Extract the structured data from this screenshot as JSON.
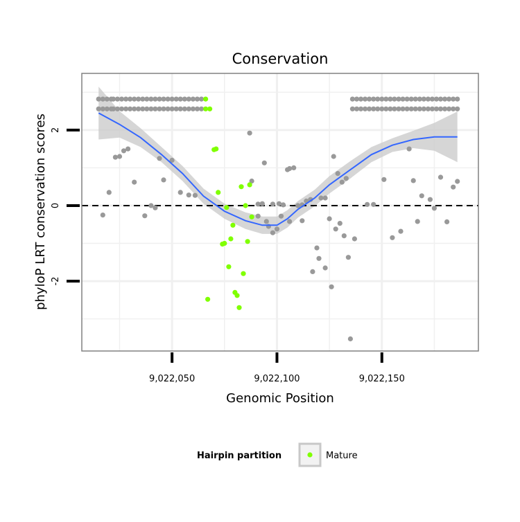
{
  "chart_data": {
    "type": "scatter",
    "title": "Conservation",
    "xlabel": "Genomic Position",
    "ylabel": "phyloP LRT conservation scores",
    "xlim": [
      9022007,
      9022196
    ],
    "ylim": [
      -3.85,
      3.5
    ],
    "xticks": [
      {
        "value": 9022050,
        "label": "9,022,050"
      },
      {
        "value": 9022100,
        "label": "9,022,100"
      },
      {
        "value": 9022150,
        "label": "9,022,150"
      }
    ],
    "yticks": [
      {
        "value": -2,
        "label": "-2"
      },
      {
        "value": 0,
        "label": "0"
      },
      {
        "value": 2,
        "label": "2"
      }
    ],
    "grid": true,
    "reference_line": {
      "y": 0,
      "style": "dashed"
    },
    "legend": {
      "title": "Hairpin partition",
      "position": "bottom",
      "entries": [
        "Mature"
      ]
    },
    "colors": {
      "background_points": "#999999",
      "mature_points": "#80ff00",
      "smooth_line": "#3366ff",
      "confidence_band": "#cccccc",
      "grid": "#f0f0f0",
      "panel_border": "#808080"
    },
    "series": [
      {
        "role": "background",
        "x": [
          9022015,
          9022017,
          9022019,
          9022021,
          9022022,
          9022024,
          9022026,
          9022028,
          9022030,
          9022032,
          9022034,
          9022036,
          9022038,
          9022040,
          9022042,
          9022044,
          9022046,
          9022048,
          9022050,
          9022052,
          9022054,
          9022056,
          9022058,
          9022060,
          9022062,
          9022064,
          9022015,
          9022017,
          9022019,
          9022021,
          9022022,
          9022024,
          9022026,
          9022028,
          9022030,
          9022032,
          9022034,
          9022036,
          9022038,
          9022040,
          9022042,
          9022044,
          9022046,
          9022048,
          9022050,
          9022052,
          9022054,
          9022056,
          9022058,
          9022060,
          9022062,
          9022064,
          9022136,
          9022138,
          9022140,
          9022142,
          9022144,
          9022146,
          9022148,
          9022150,
          9022152,
          9022154,
          9022156,
          9022158,
          9022160,
          9022162,
          9022164,
          9022166,
          9022168,
          9022170,
          9022172,
          9022174,
          9022176,
          9022178,
          9022180,
          9022182,
          9022184,
          9022186,
          9022136,
          9022138,
          9022140,
          9022142,
          9022144,
          9022146,
          9022148,
          9022150,
          9022152,
          9022154,
          9022156,
          9022158,
          9022160,
          9022162,
          9022164,
          9022166,
          9022168,
          9022170,
          9022172,
          9022174,
          9022176,
          9022178,
          9022180,
          9022182,
          9022184,
          9022186,
          9022017,
          9022020,
          9022023,
          9022025,
          9022027,
          9022029,
          9022032,
          9022037,
          9022040,
          9022042,
          9022044,
          9022046,
          9022050,
          9022054,
          9022058,
          9022061,
          9022087,
          9022091,
          9022093,
          9022096,
          9022098,
          9022101,
          9022103,
          9022105,
          9022106,
          9022108,
          9022110,
          9022112,
          9022114,
          9022116,
          9022117,
          9022119,
          9022121,
          9022123,
          9022125,
          9022127,
          9022129,
          9022131,
          9022133,
          9022135,
          9022137,
          9022143,
          9022146,
          9022151,
          9022155,
          9022159,
          9022163,
          9022165,
          9022167,
          9022169,
          9022173,
          9022175,
          9022178,
          9022181,
          9022184,
          9022186,
          9022088,
          9022091,
          9022094,
          9022095,
          9022098,
          9022100,
          9022102,
          9022106,
          9022112,
          9022120,
          9022123,
          9022126,
          9022128,
          9022130,
          9022132,
          9022134
        ],
        "y": [
          2.56,
          2.56,
          2.56,
          2.56,
          2.56,
          2.56,
          2.56,
          2.56,
          2.56,
          2.56,
          2.56,
          2.56,
          2.56,
          2.56,
          2.56,
          2.56,
          2.56,
          2.56,
          2.56,
          2.56,
          2.56,
          2.56,
          2.56,
          2.56,
          2.56,
          2.56,
          2.82,
          2.82,
          2.82,
          2.82,
          2.82,
          2.82,
          2.82,
          2.82,
          2.82,
          2.82,
          2.82,
          2.82,
          2.82,
          2.82,
          2.82,
          2.82,
          2.82,
          2.82,
          2.82,
          2.82,
          2.82,
          2.82,
          2.82,
          2.82,
          2.82,
          2.82,
          2.56,
          2.56,
          2.56,
          2.56,
          2.56,
          2.56,
          2.56,
          2.56,
          2.56,
          2.56,
          2.56,
          2.56,
          2.56,
          2.56,
          2.56,
          2.56,
          2.56,
          2.56,
          2.56,
          2.56,
          2.56,
          2.56,
          2.56,
          2.56,
          2.56,
          2.56,
          2.82,
          2.82,
          2.82,
          2.82,
          2.82,
          2.82,
          2.82,
          2.82,
          2.82,
          2.82,
          2.82,
          2.82,
          2.82,
          2.82,
          2.82,
          2.82,
          2.82,
          2.82,
          2.82,
          2.82,
          2.82,
          2.82,
          2.82,
          2.82,
          2.82,
          2.82,
          -0.25,
          0.35,
          1.28,
          1.3,
          1.45,
          1.5,
          0.62,
          -0.27,
          0.0,
          -0.06,
          1.25,
          0.68,
          1.2,
          0.35,
          0.28,
          0.27,
          1.92,
          0.04,
          0.05,
          -0.55,
          -0.72,
          0.05,
          0.02,
          0.95,
          0.98,
          1.0,
          0.0,
          0.02,
          0.12,
          0.16,
          -1.75,
          -1.12,
          0.2,
          0.2,
          -0.35,
          1.3,
          0.85,
          0.62,
          0.72,
          -3.53,
          -0.88,
          0.03,
          0.03,
          0.69,
          -0.85,
          -0.68,
          1.5,
          0.66,
          -0.42,
          0.26,
          0.16,
          -0.07,
          0.75,
          -0.43,
          0.49,
          0.64,
          0.65,
          -0.28,
          1.13,
          -0.42,
          0.04,
          -0.62,
          -0.28,
          -0.42,
          -0.4,
          -1.4,
          -1.65,
          -2.15,
          -0.62,
          -0.47,
          -0.8,
          -1.37
        ]
      },
      {
        "name": "Mature",
        "role": "mature",
        "x": [
          9022066,
          9022068,
          9022070,
          9022071,
          9022072,
          9022074,
          9022075,
          9022076,
          9022077,
          9022078,
          9022079,
          9022080,
          9022081,
          9022082,
          9022083,
          9022084,
          9022085,
          9022086,
          9022087,
          9022088,
          9022066,
          9022067
        ],
        "y": [
          2.82,
          2.56,
          1.48,
          1.5,
          0.35,
          -1.02,
          -1.0,
          -0.05,
          -1.62,
          -0.88,
          -0.52,
          -2.3,
          -2.38,
          -2.7,
          0.5,
          -1.8,
          0.0,
          -0.95,
          0.55,
          -0.3,
          2.56,
          -2.48
        ]
      }
    ],
    "smooth": {
      "x": [
        9022015,
        9022025,
        9022035,
        9022045,
        9022055,
        9022065,
        9022075,
        9022085,
        9022093,
        9022100,
        9022105,
        9022110,
        9022118,
        9022125,
        9022135,
        9022145,
        9022155,
        9022165,
        9022175,
        9022186
      ],
      "y": [
        2.45,
        2.15,
        1.8,
        1.35,
        0.85,
        0.25,
        -0.15,
        -0.4,
        -0.52,
        -0.52,
        -0.35,
        -0.1,
        0.2,
        0.55,
        0.95,
        1.35,
        1.6,
        1.75,
        1.82,
        1.82
      ],
      "lower": [
        1.75,
        1.8,
        1.55,
        1.15,
        0.65,
        0.05,
        -0.35,
        -0.62,
        -0.75,
        -0.75,
        -0.58,
        -0.32,
        -0.02,
        0.32,
        0.72,
        1.15,
        1.42,
        1.52,
        1.45,
        1.15
      ],
      "upper": [
        3.15,
        2.5,
        2.05,
        1.55,
        1.05,
        0.45,
        0.05,
        -0.18,
        -0.29,
        -0.29,
        -0.12,
        0.12,
        0.42,
        0.78,
        1.18,
        1.55,
        1.78,
        1.98,
        2.19,
        2.49
      ]
    }
  }
}
